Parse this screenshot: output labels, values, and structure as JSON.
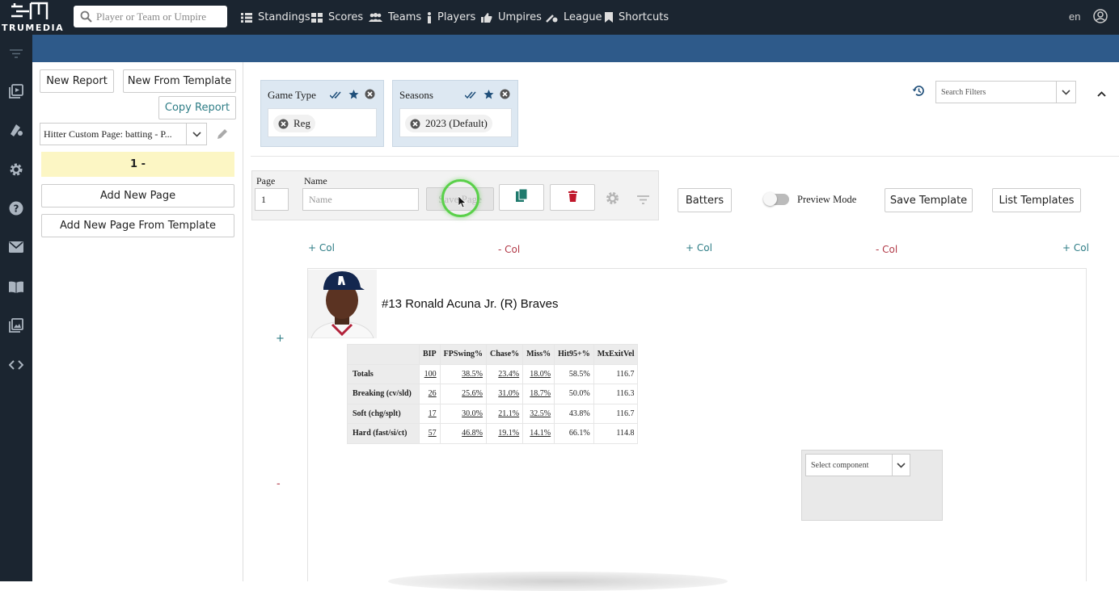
{
  "app": {
    "logo_text": "TRUMEDIA",
    "search_placeholder": "Player or Team or Umpire",
    "nav": [
      {
        "label": "Standings",
        "icon": "list-icon"
      },
      {
        "label": "Scores",
        "icon": "grid-icon"
      },
      {
        "label": "Teams",
        "icon": "users-icon"
      },
      {
        "label": "Players",
        "icon": "person-icon"
      },
      {
        "label": "Umpires",
        "icon": "thumb-icon"
      },
      {
        "label": "League",
        "icon": "baseball-icon"
      },
      {
        "label": "Shortcuts",
        "icon": "bookmark-icon"
      }
    ],
    "language": "en"
  },
  "left_panel": {
    "new_report": "New Report",
    "new_from_template": "New From Template",
    "copy_report": "Copy Report",
    "report_select": "Hitter Custom Page: batting - P...",
    "current_page": "1 -",
    "add_new_page": "Add New Page",
    "add_new_page_from_template": "Add New Page From Template"
  },
  "filters": {
    "game_type": {
      "title": "Game Type",
      "chip": "Reg"
    },
    "seasons": {
      "title": "Seasons",
      "chip": "2023 (Default)"
    },
    "search_placeholder": "Search Filters"
  },
  "page_bar": {
    "page_label": "Page",
    "page_value": "1",
    "name_label": "Name",
    "name_placeholder": "Name",
    "save_page": "Save Page"
  },
  "toolbar": {
    "batters": "Batters",
    "preview_mode": "Preview Mode",
    "save_template": "Save Template",
    "list_templates": "List Templates"
  },
  "columns": {
    "plus_col": "+ Col",
    "minus_col": "- Col",
    "row_plus": "+",
    "row_minus": "-"
  },
  "player": {
    "title": "#13 Ronald Acuna Jr. (R) Braves"
  },
  "stats_table": {
    "headers": [
      "BIP",
      "FPSwing%",
      "Chase%",
      "Miss%",
      "Hit95+%",
      "MxExitVel"
    ],
    "rows": [
      {
        "label": "Totals",
        "values": [
          "100",
          "38.5%",
          "23.4%",
          "18.0%",
          "58.5%",
          "116.7"
        ]
      },
      {
        "label": "Breaking (cv/sld)",
        "values": [
          "26",
          "25.6%",
          "31.0%",
          "18.7%",
          "50.0%",
          "116.3"
        ]
      },
      {
        "label": "Soft (chg/splt)",
        "values": [
          "17",
          "30.0%",
          "21.1%",
          "32.5%",
          "43.8%",
          "116.7"
        ]
      },
      {
        "label": "Hard (fast/si/ct)",
        "values": [
          "57",
          "46.8%",
          "19.1%",
          "14.1%",
          "66.1%",
          "114.8"
        ]
      }
    ]
  },
  "component": {
    "placeholder": "Select component"
  },
  "colors": {
    "topbar": "#1b2530",
    "band": "#2e5a8a",
    "teal": "#2e7d86",
    "red": "#b23a48",
    "delete": "#c0172b",
    "copy": "#1f7a6d"
  }
}
